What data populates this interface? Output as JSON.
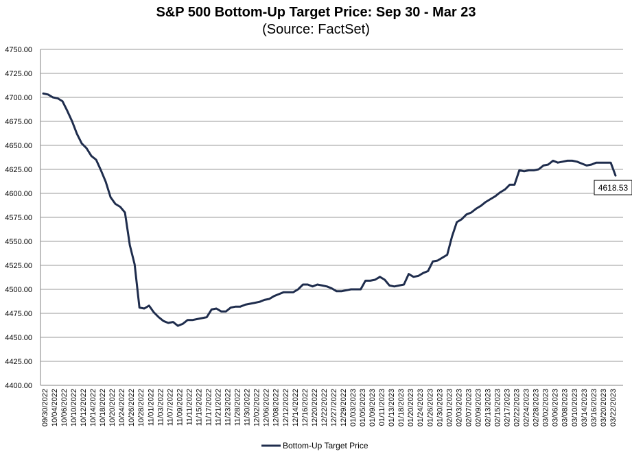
{
  "chart_data": {
    "type": "line",
    "title": "S&P 500 Bottom-Up Target Price: Sep 30 - Mar 23",
    "subtitle": "(Source: FactSet)",
    "xlabel": "",
    "ylabel": "",
    "ylim": [
      4400,
      4750
    ],
    "ytick_step": 25,
    "grid": true,
    "legend_position": "bottom",
    "line_color": "#1f2d4d",
    "x_tick_labels": [
      "09/30/2022",
      "10/04/2022",
      "10/06/2022",
      "10/10/2022",
      "10/12/2022",
      "10/14/2022",
      "10/18/2022",
      "10/20/2022",
      "10/24/2022",
      "10/26/2022",
      "10/28/2022",
      "11/01/2022",
      "11/03/2022",
      "11/07/2022",
      "11/09/2022",
      "11/11/2022",
      "11/15/2022",
      "11/17/2022",
      "11/21/2022",
      "11/23/2022",
      "11/28/2022",
      "11/30/2022",
      "12/02/2022",
      "12/06/2022",
      "12/08/2022",
      "12/12/2022",
      "12/14/2022",
      "12/16/2022",
      "12/20/2022",
      "12/22/2022",
      "12/27/2022",
      "12/29/2022",
      "01/03/2023",
      "01/05/2023",
      "01/09/2023",
      "01/11/2023",
      "01/13/2023",
      "01/18/2023",
      "01/20/2023",
      "01/24/2023",
      "01/26/2023",
      "01/30/2023",
      "02/01/2023",
      "02/03/2023",
      "02/07/2023",
      "02/09/2023",
      "02/13/2023",
      "02/15/2023",
      "02/17/2023",
      "02/22/2023",
      "02/24/2023",
      "02/28/2023",
      "03/02/2023",
      "03/06/2023",
      "03/08/2023",
      "03/10/2023",
      "03/14/2023",
      "03/16/2023",
      "03/20/2023",
      "03/22/2023"
    ],
    "series": [
      {
        "name": "Bottom-Up Target Price",
        "values": [
          4704,
          4703,
          4700,
          4699,
          4696,
          4686,
          4675,
          4662,
          4652,
          4647,
          4639,
          4635,
          4624,
          4612,
          4596,
          4589,
          4586,
          4580,
          4546,
          4526,
          4481,
          4480,
          4483,
          4476,
          4471,
          4467,
          4465,
          4466,
          4462,
          4464,
          4468,
          4468,
          4469,
          4470,
          4471,
          4479,
          4480,
          4477,
          4477,
          4481,
          4482,
          4482,
          4484,
          4485,
          4486,
          4487,
          4489,
          4490,
          4493,
          4495,
          4497,
          4497,
          4497,
          4500,
          4505,
          4505,
          4503,
          4505,
          4504,
          4503,
          4501,
          4498,
          4498,
          4499,
          4500,
          4500,
          4500,
          4509,
          4509,
          4510,
          4513,
          4510,
          4504,
          4503,
          4504,
          4505,
          4516,
          4513,
          4514,
          4517,
          4519,
          4529,
          4530,
          4533,
          4536,
          4555,
          4570,
          4573,
          4578,
          4580,
          4584,
          4587,
          4591,
          4594,
          4597,
          4601,
          4604,
          4609,
          4609,
          4624,
          4623,
          4624,
          4624,
          4625,
          4629,
          4630,
          4634,
          4632,
          4633,
          4634,
          4634,
          4633,
          4631,
          4629,
          4630,
          4632,
          4632,
          4632,
          4632,
          4618.53
        ]
      }
    ],
    "last_value_label": "4618.53"
  }
}
